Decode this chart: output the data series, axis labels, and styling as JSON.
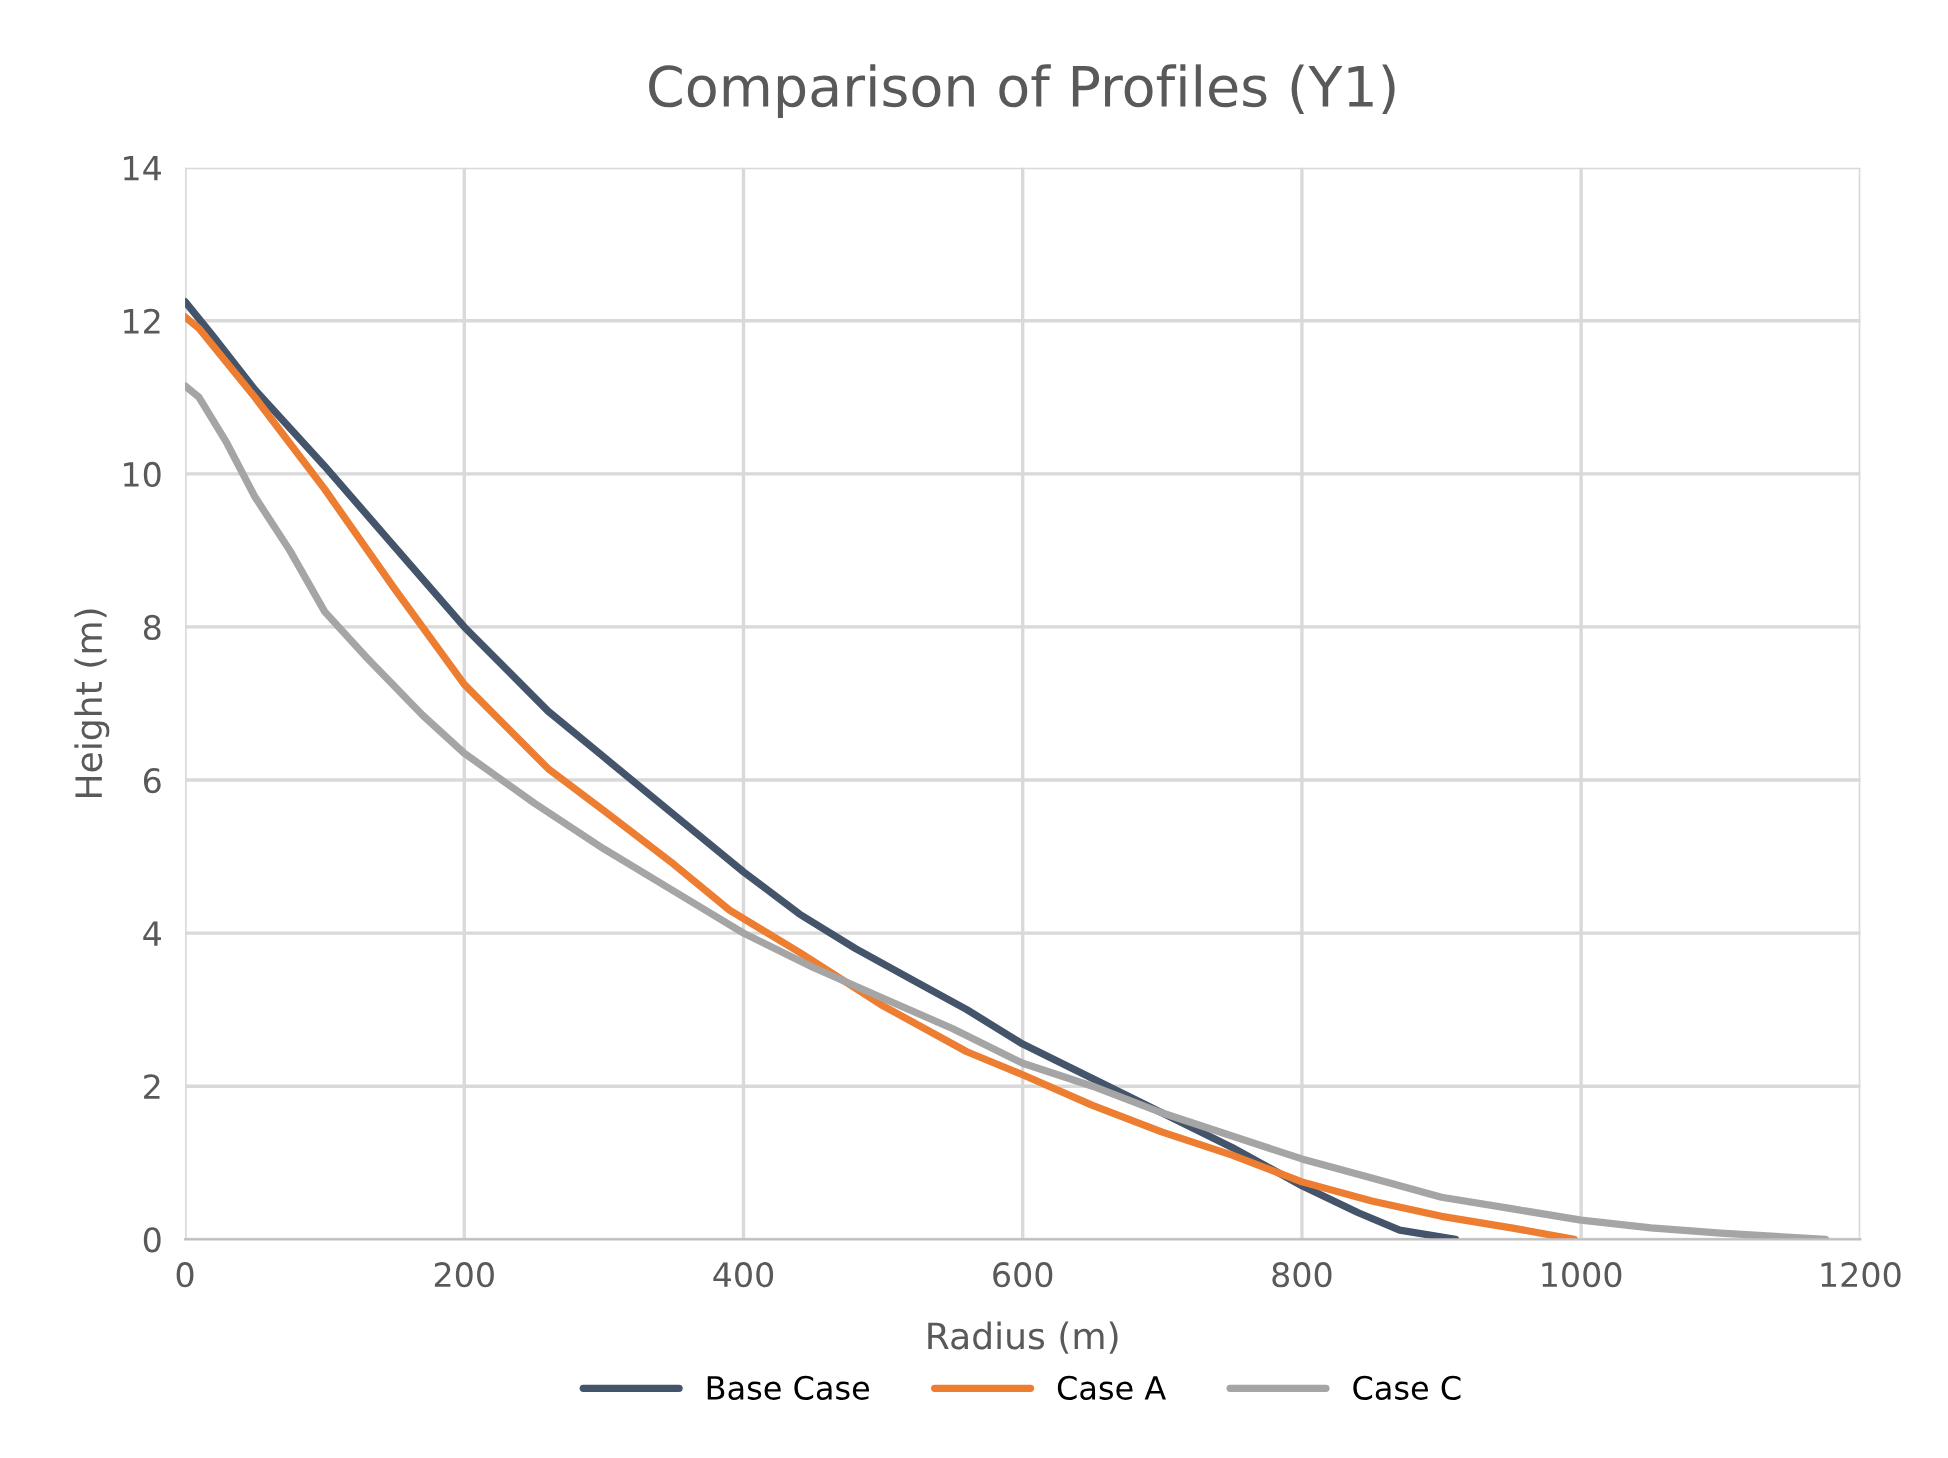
{
  "chart_data": {
    "type": "line",
    "title": "Comparison of Profiles (Y1)",
    "xlabel": "Radius (m)",
    "ylabel": "Height (m)",
    "xlim": [
      0,
      1200
    ],
    "xticks": [
      0,
      200,
      400,
      600,
      800,
      1000,
      1200
    ],
    "ylim": [
      0,
      14
    ],
    "yticks": [
      0,
      2,
      4,
      6,
      8,
      10,
      12,
      14
    ],
    "grid": true,
    "legend": "bottom",
    "marker": "none",
    "line_style": "solid",
    "series": [
      {
        "name": "Base Case",
        "color": "#44546a",
        "x": [
          0,
          20,
          50,
          100,
          150,
          200,
          260,
          300,
          350,
          400,
          440,
          480,
          520,
          560,
          600,
          650,
          700,
          750,
          800,
          840,
          870,
          910
        ],
        "values": [
          12.25,
          11.8,
          11.1,
          10.1,
          9.05,
          8.0,
          6.9,
          6.3,
          5.55,
          4.8,
          4.25,
          3.8,
          3.4,
          3.0,
          2.55,
          2.1,
          1.65,
          1.2,
          0.7,
          0.35,
          0.12,
          0.0
        ]
      },
      {
        "name": "Case A",
        "color": "#ed7d31",
        "x": [
          0,
          10,
          50,
          100,
          150,
          200,
          260,
          300,
          350,
          390,
          440,
          500,
          560,
          600,
          650,
          700,
          750,
          800,
          850,
          900,
          950,
          995
        ],
        "values": [
          12.05,
          11.9,
          11.0,
          9.8,
          8.5,
          7.25,
          6.15,
          5.6,
          4.9,
          4.3,
          3.75,
          3.05,
          2.45,
          2.15,
          1.75,
          1.4,
          1.1,
          0.75,
          0.5,
          0.3,
          0.15,
          0.0
        ]
      },
      {
        "name": "Case C",
        "color": "#a5a5a5",
        "x": [
          0,
          10,
          30,
          50,
          75,
          100,
          130,
          170,
          200,
          250,
          300,
          350,
          400,
          450,
          500,
          550,
          600,
          650,
          700,
          750,
          800,
          850,
          900,
          950,
          1000,
          1050,
          1100,
          1175
        ],
        "values": [
          11.15,
          11.0,
          10.4,
          9.7,
          9.0,
          8.2,
          7.6,
          6.85,
          6.35,
          5.7,
          5.1,
          4.55,
          4.0,
          3.55,
          3.15,
          2.75,
          2.3,
          2.0,
          1.65,
          1.35,
          1.05,
          0.8,
          0.55,
          0.4,
          0.25,
          0.15,
          0.08,
          0.0
        ]
      }
    ]
  }
}
